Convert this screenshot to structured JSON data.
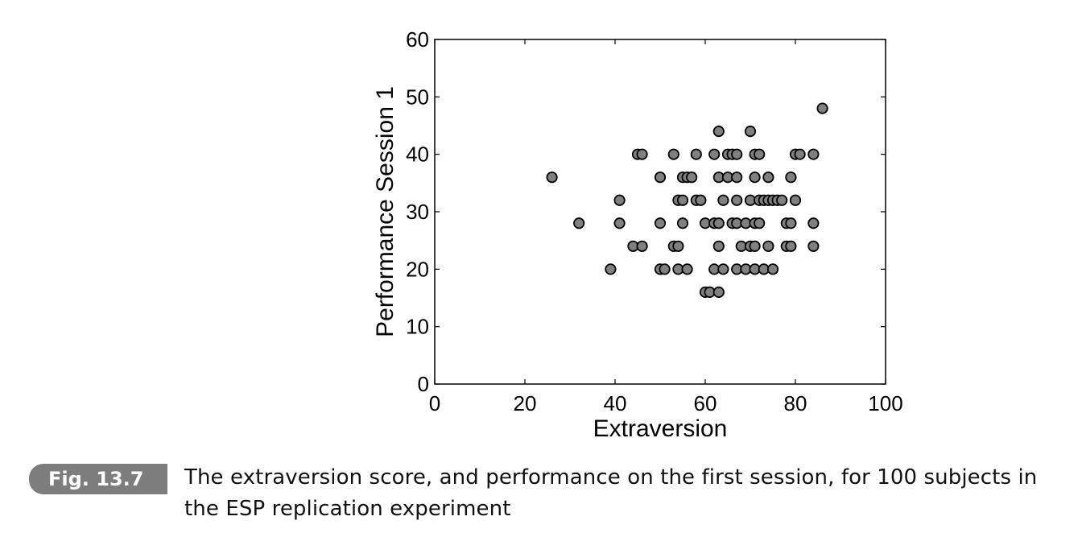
{
  "chart_data": {
    "type": "scatter",
    "xlabel": "Extraversion",
    "ylabel": "Performance Session 1",
    "xlim": [
      0,
      100
    ],
    "ylim": [
      0,
      60
    ],
    "xticks": [
      "0",
      "20",
      "40",
      "60",
      "80",
      "100"
    ],
    "yticks": [
      "0",
      "10",
      "20",
      "30",
      "40",
      "50",
      "60"
    ],
    "grid": false,
    "marker_color": "#808080",
    "points": [
      [
        26,
        36
      ],
      [
        32,
        28
      ],
      [
        39,
        20
      ],
      [
        41,
        32
      ],
      [
        41,
        28
      ],
      [
        44,
        24
      ],
      [
        45,
        40
      ],
      [
        46,
        40
      ],
      [
        46,
        24
      ],
      [
        50,
        36
      ],
      [
        50,
        28
      ],
      [
        50,
        20
      ],
      [
        51,
        20
      ],
      [
        53,
        40
      ],
      [
        53,
        24
      ],
      [
        54,
        32
      ],
      [
        54,
        24
      ],
      [
        54,
        20
      ],
      [
        55,
        36
      ],
      [
        55,
        32
      ],
      [
        55,
        28
      ],
      [
        56,
        36
      ],
      [
        56,
        20
      ],
      [
        57,
        36
      ],
      [
        58,
        40
      ],
      [
        58,
        32
      ],
      [
        59,
        32
      ],
      [
        60,
        28
      ],
      [
        60,
        16
      ],
      [
        61,
        16
      ],
      [
        62,
        40
      ],
      [
        62,
        28
      ],
      [
        62,
        20
      ],
      [
        63,
        44
      ],
      [
        63,
        36
      ],
      [
        63,
        28
      ],
      [
        63,
        24
      ],
      [
        63,
        16
      ],
      [
        64,
        32
      ],
      [
        64,
        20
      ],
      [
        65,
        40
      ],
      [
        65,
        36
      ],
      [
        66,
        40
      ],
      [
        66,
        28
      ],
      [
        67,
        40
      ],
      [
        67,
        36
      ],
      [
        67,
        32
      ],
      [
        67,
        28
      ],
      [
        67,
        20
      ],
      [
        68,
        24
      ],
      [
        69,
        28
      ],
      [
        69,
        20
      ],
      [
        70,
        44
      ],
      [
        70,
        32
      ],
      [
        70,
        24
      ],
      [
        71,
        40
      ],
      [
        71,
        36
      ],
      [
        71,
        28
      ],
      [
        71,
        24
      ],
      [
        71,
        20
      ],
      [
        72,
        40
      ],
      [
        72,
        32
      ],
      [
        72,
        28
      ],
      [
        73,
        32
      ],
      [
        73,
        20
      ],
      [
        74,
        36
      ],
      [
        74,
        32
      ],
      [
        74,
        24
      ],
      [
        75,
        32
      ],
      [
        75,
        20
      ],
      [
        76,
        32
      ],
      [
        77,
        32
      ],
      [
        78,
        28
      ],
      [
        78,
        24
      ],
      [
        79,
        36
      ],
      [
        79,
        28
      ],
      [
        79,
        24
      ],
      [
        80,
        40
      ],
      [
        80,
        32
      ],
      [
        81,
        40
      ],
      [
        84,
        40
      ],
      [
        84,
        28
      ],
      [
        84,
        24
      ],
      [
        86,
        48
      ]
    ]
  },
  "caption": {
    "label": "Fig. 13.7",
    "text": "The extraversion score, and performance on the first session, for 100 subjects in the ESP replication experiment"
  }
}
